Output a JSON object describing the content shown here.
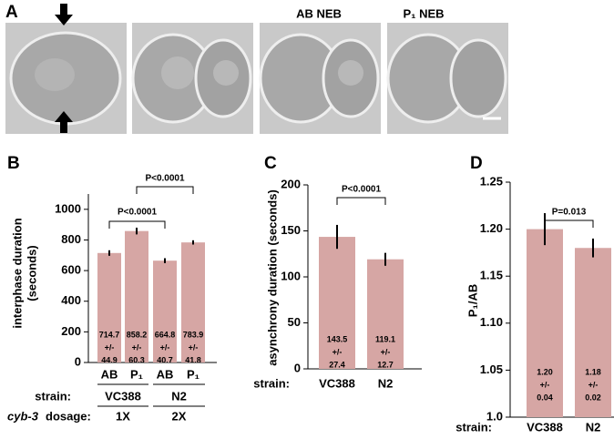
{
  "panel_a": {
    "label": "A",
    "captions": [
      "AB NEB",
      "P₁ NEB"
    ]
  },
  "chart_data": [
    {
      "type": "bar",
      "panel": "B",
      "ylabel": [
        "interphase duration",
        "(seconds)"
      ],
      "categories": [
        "AB",
        "P₁",
        "AB",
        "P₁"
      ],
      "values": [
        714.7,
        858.2,
        664.8,
        783.9
      ],
      "sd_label": "+/-",
      "sd": [
        44.9,
        60.3,
        40.7,
        41.8
      ],
      "errors": [
        18,
        22,
        16,
        14
      ],
      "color": "#d6a6a4",
      "ylim": [
        0,
        1100
      ],
      "yticks": [
        0,
        200,
        400,
        600,
        800,
        1000
      ],
      "group_label": "strain:",
      "groups": [
        "VC388",
        "N2"
      ],
      "dosage_label": [
        "cyb-3",
        "dosage:"
      ],
      "dosages": [
        "1X",
        "2X"
      ],
      "annotations": [
        "P<0.0001",
        "P<0.0001"
      ]
    },
    {
      "type": "bar",
      "panel": "C",
      "ylabel": [
        "asynchrony duration (seconds)"
      ],
      "category_label": "strain:",
      "categories": [
        "VC388",
        "N2"
      ],
      "values": [
        143.5,
        119.1
      ],
      "sd_label": "+/-",
      "sd": [
        27.4,
        12.7
      ],
      "errors": [
        13,
        7
      ],
      "color": "#d6a6a4",
      "ylim": [
        0,
        200
      ],
      "yticks": [
        0,
        50,
        100,
        150,
        200
      ],
      "annotations": [
        "P<0.0001"
      ]
    },
    {
      "type": "bar",
      "panel": "D",
      "ylabel": [
        "P₁/AB"
      ],
      "category_label": "strain:",
      "categories": [
        "VC388",
        "N2"
      ],
      "values": [
        1.2,
        1.18
      ],
      "value_labels": [
        "1.20",
        "1.18"
      ],
      "sd_label": "+/-",
      "sd": [
        0.04,
        0.02
      ],
      "errors": [
        0.017,
        0.01
      ],
      "color": "#d6a6a4",
      "ylim": [
        1,
        1.25
      ],
      "yticks": [
        {
          "value": 1,
          "label": "1.0"
        },
        1.05,
        {
          "value": 1.1,
          "label": "1.10"
        },
        1.15,
        {
          "value": 1.2,
          "label": "1.20"
        },
        1.25
      ],
      "annotations": [
        "P=0.013"
      ]
    }
  ]
}
